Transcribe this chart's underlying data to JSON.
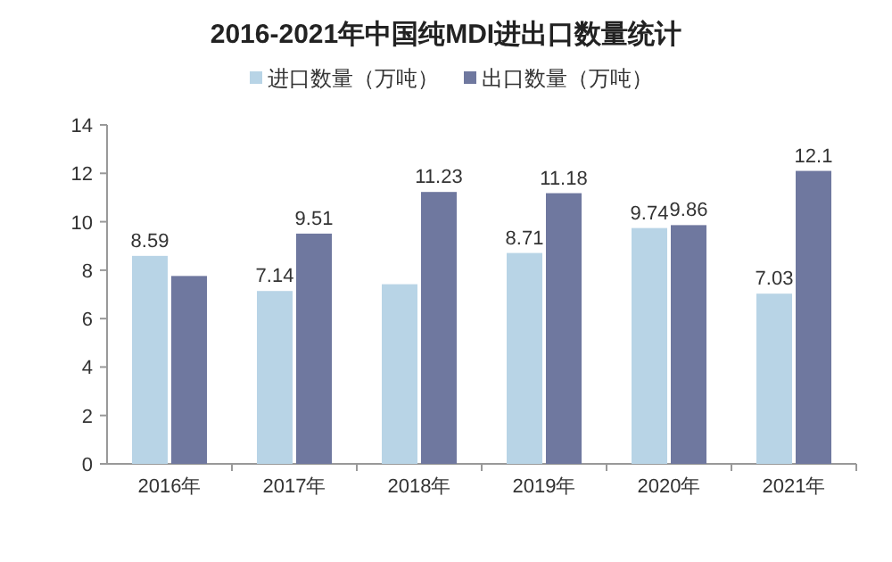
{
  "chart_data": {
    "type": "bar",
    "title": "2016-2021年中国纯MDI进出口数量统计",
    "categories": [
      "2016年",
      "2017年",
      "2018年",
      "2019年",
      "2020年",
      "2021年"
    ],
    "series": [
      {
        "name": "进口数量（万吨）",
        "color": "#b8d4e6",
        "values": [
          8.59,
          7.14,
          7.42,
          8.71,
          9.74,
          7.03
        ],
        "value_labels": [
          "8.59",
          "7.14",
          null,
          "8.71",
          "9.74",
          "7.03"
        ]
      },
      {
        "name": "出口数量（万吨）",
        "color": "#6f789f",
        "values": [
          7.76,
          9.51,
          11.23,
          11.18,
          9.86,
          12.1
        ],
        "value_labels": [
          null,
          "9.51",
          "11.23",
          "11.18",
          "9.86",
          "12.1"
        ]
      }
    ],
    "ylim": [
      0,
      14
    ],
    "yticks": [
      0,
      2,
      4,
      6,
      8,
      10,
      12,
      14
    ],
    "grid": false,
    "legend": "top"
  }
}
